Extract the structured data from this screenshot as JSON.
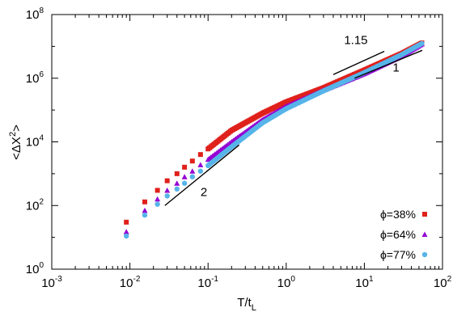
{
  "chart_data": {
    "type": "scatter",
    "xscale": "log",
    "yscale": "log",
    "xlim": [
      0.001,
      100
    ],
    "ylim": [
      1,
      100000000
    ],
    "xlabel_main": "T/t",
    "xlabel_sub": "L",
    "ylabel_left": "<ΔX",
    "ylabel_sup": "2",
    "ylabel_right": ">",
    "x_ticks": [
      {
        "base": "10",
        "exp": "-3",
        "value": 0.001
      },
      {
        "base": "10",
        "exp": "-2",
        "value": 0.01
      },
      {
        "base": "10",
        "exp": "-1",
        "value": 0.1
      },
      {
        "base": "10",
        "exp": "0",
        "value": 1
      },
      {
        "base": "10",
        "exp": "1",
        "value": 10
      },
      {
        "base": "10",
        "exp": "2",
        "value": 100
      }
    ],
    "y_ticks": [
      {
        "base": "10",
        "exp": "0",
        "value": 1
      },
      {
        "base": "10",
        "exp": "2",
        "value": 100
      },
      {
        "base": "10",
        "exp": "4",
        "value": 10000
      },
      {
        "base": "10",
        "exp": "6",
        "value": 1000000
      },
      {
        "base": "10",
        "exp": "8",
        "value": 100000000
      }
    ],
    "legend_position": "bottom-right",
    "series": [
      {
        "name": "ϕ=38%",
        "marker": "square",
        "color": "#e0201b",
        "x": [
          0.009,
          0.0155,
          0.0225,
          0.03,
          0.04,
          0.05,
          0.063,
          0.08,
          0.1,
          0.2,
          0.5,
          1,
          3,
          10,
          30,
          55
        ],
        "y": [
          30,
          130,
          300,
          600,
          1000,
          1600,
          2500,
          4000,
          6000,
          23000,
          80000,
          180000,
          500000,
          1800000,
          6000000,
          13000000
        ]
      },
      {
        "name": "ϕ=64%",
        "marker": "triangle",
        "color": "#9400d3",
        "x": [
          0.009,
          0.0155,
          0.0225,
          0.03,
          0.04,
          0.05,
          0.063,
          0.08,
          0.1,
          0.2,
          0.5,
          1,
          3,
          10,
          30,
          55
        ],
        "y": [
          15,
          70,
          160,
          300,
          500,
          800,
          1200,
          1900,
          2800,
          10000,
          50000,
          130000,
          420000,
          1400000,
          5000000,
          12000000
        ]
      },
      {
        "name": "ϕ=77%",
        "marker": "circle",
        "color": "#56b4e9",
        "x": [
          0.009,
          0.0155,
          0.0225,
          0.03,
          0.04,
          0.05,
          0.063,
          0.08,
          0.1,
          0.2,
          0.5,
          1,
          3,
          10,
          30,
          55
        ],
        "y": [
          11,
          50,
          110,
          200,
          330,
          500,
          800,
          1200,
          1800,
          7000,
          40000,
          110000,
          400000,
          1500000,
          5500000,
          12500000
        ]
      }
    ],
    "guide_lines": [
      {
        "label": "2",
        "x": [
          0.028,
          0.25
        ],
        "y": [
          100,
          8000
        ],
        "label_x": 0.08,
        "label_y": 200
      },
      {
        "label": "1.15",
        "x": [
          4,
          18
        ],
        "y": [
          1300000,
          7000000
        ],
        "label_x": 5.5,
        "label_y": 12000000
      },
      {
        "label": "1",
        "x": [
          7.5,
          55
        ],
        "y": [
          1000000,
          7500000
        ],
        "label_x": 23,
        "label_y": 1600000
      }
    ]
  }
}
